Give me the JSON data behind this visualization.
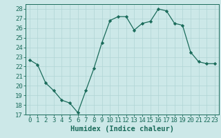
{
  "x": [
    0,
    1,
    2,
    3,
    4,
    5,
    6,
    7,
    8,
    9,
    10,
    11,
    12,
    13,
    14,
    15,
    16,
    17,
    18,
    19,
    20,
    21,
    22,
    23
  ],
  "y": [
    22.7,
    22.2,
    20.3,
    19.5,
    18.5,
    18.2,
    17.2,
    19.5,
    21.8,
    24.5,
    26.8,
    27.2,
    27.2,
    25.8,
    26.5,
    26.7,
    28.0,
    27.8,
    26.5,
    26.3,
    23.5,
    22.5,
    22.3,
    22.3
  ],
  "xlim": [
    -0.5,
    23.5
  ],
  "ylim": [
    17,
    28.5
  ],
  "xticks": [
    0,
    1,
    2,
    3,
    4,
    5,
    6,
    7,
    8,
    9,
    10,
    11,
    12,
    13,
    14,
    15,
    16,
    17,
    18,
    19,
    20,
    21,
    22,
    23
  ],
  "yticks": [
    17,
    18,
    19,
    20,
    21,
    22,
    23,
    24,
    25,
    26,
    27,
    28
  ],
  "xlabel": "Humidex (Indice chaleur)",
  "line_color": "#1a6b5a",
  "marker": "D",
  "marker_size": 2.2,
  "bg_color": "#cce8e8",
  "grid_color": "#b0d4d4",
  "tick_fontsize": 6.5,
  "xlabel_fontsize": 7.5
}
